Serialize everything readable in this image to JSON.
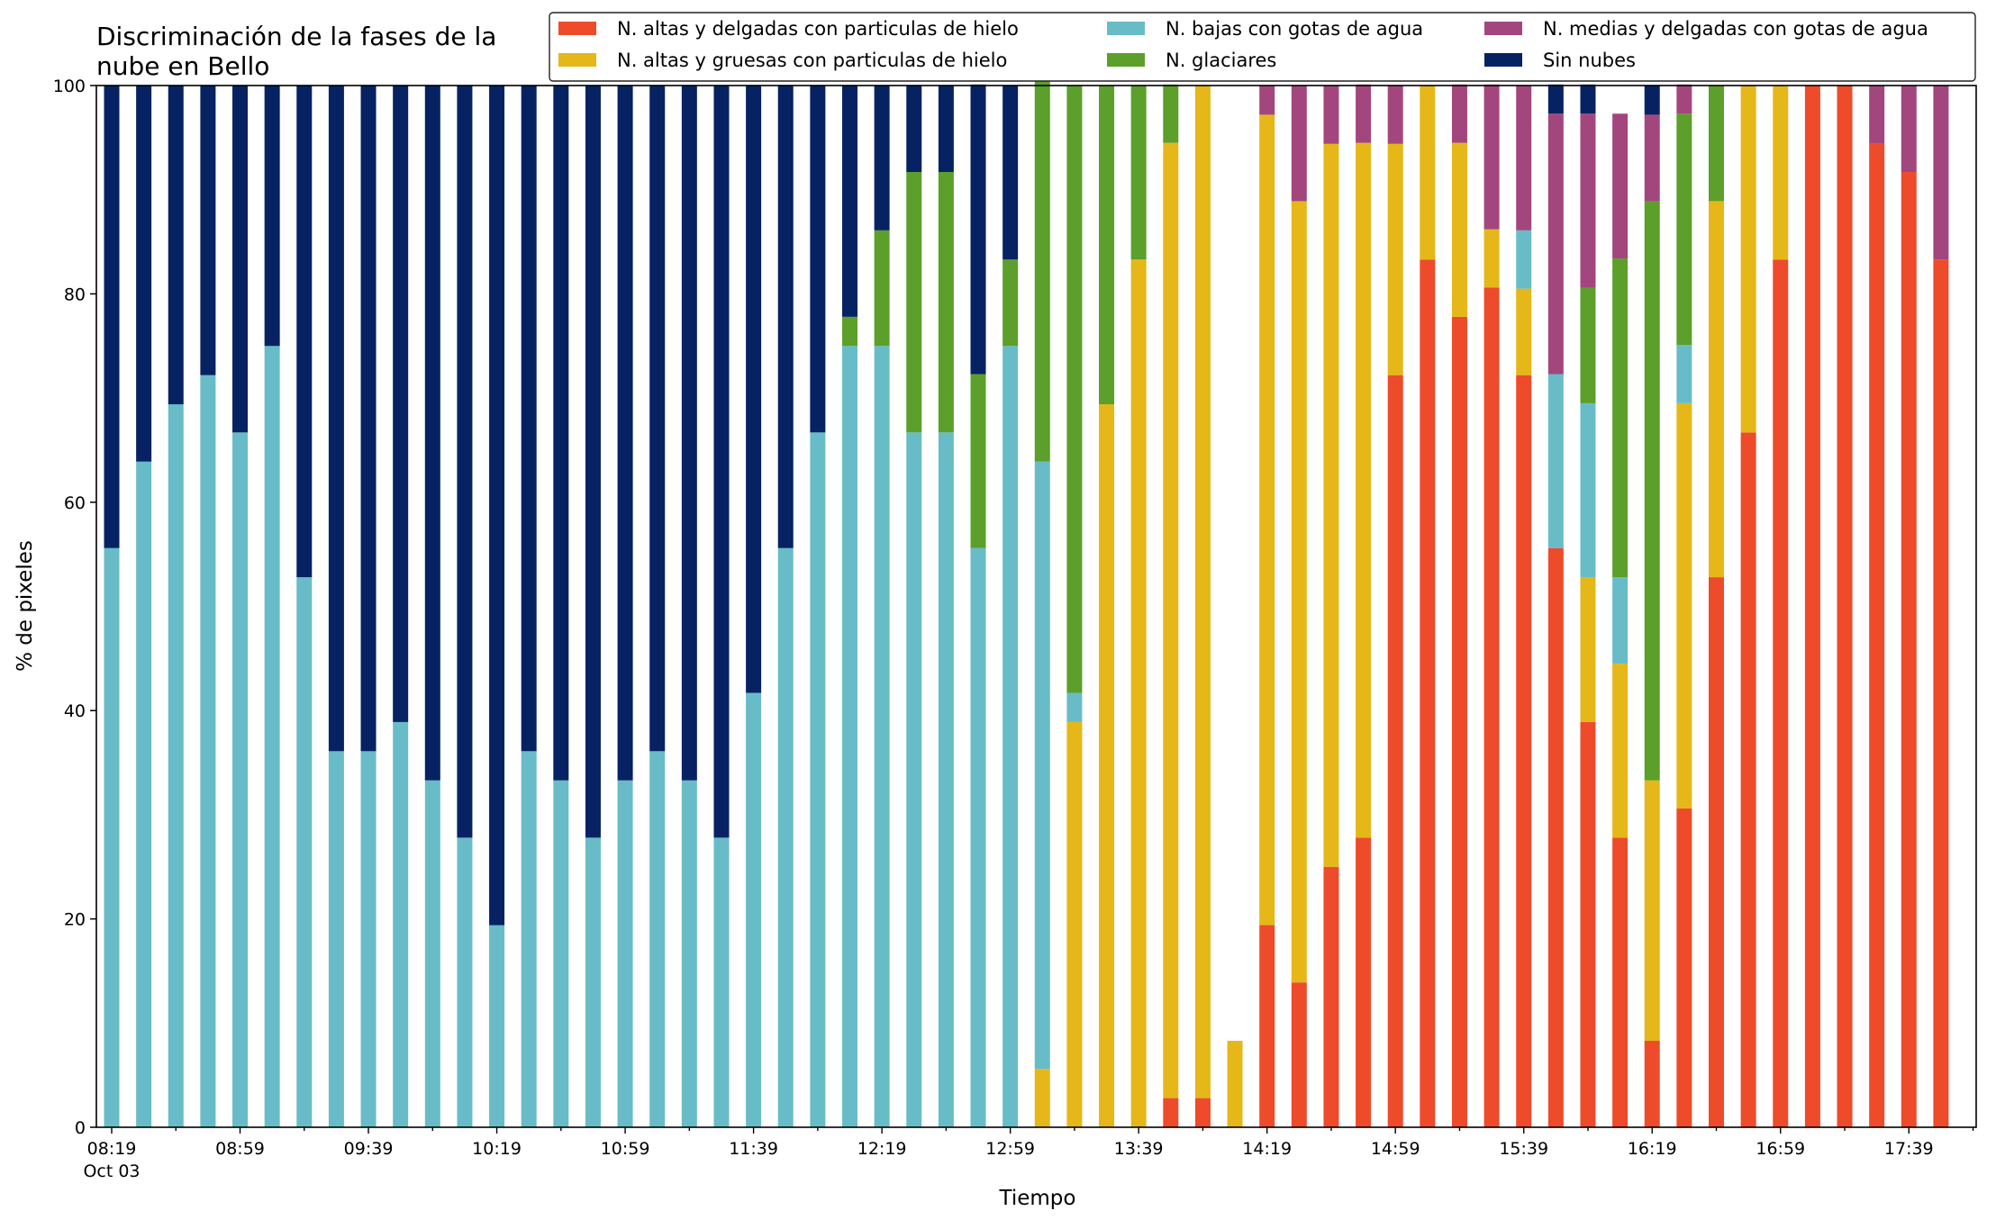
{
  "chart_data": {
    "type": "bar",
    "stacked": true,
    "title": "Discriminación de la fases de la nube en Bello",
    "title_lines": [
      "Discriminación de la fases de la",
      "nube en Bello"
    ],
    "xlabel": "Tiempo",
    "ylabel": "% de pixeles",
    "ylim": [
      0,
      100
    ],
    "yticks": [
      0,
      20,
      40,
      60,
      80,
      100
    ],
    "grid": false,
    "legend_position": "top-right",
    "x_tick_labels": [
      {
        "index": 0,
        "label": "08:19",
        "sublabel": "Oct 03"
      },
      {
        "index": 4,
        "label": "08:59"
      },
      {
        "index": 8,
        "label": "09:39"
      },
      {
        "index": 12,
        "label": "10:19"
      },
      {
        "index": 16,
        "label": "10:59"
      },
      {
        "index": 20,
        "label": "11:39"
      },
      {
        "index": 24,
        "label": "12:19"
      },
      {
        "index": 28,
        "label": "12:59"
      },
      {
        "index": 32,
        "label": "13:39"
      },
      {
        "index": 36,
        "label": "14:19"
      },
      {
        "index": 40,
        "label": "14:59"
      },
      {
        "index": 44,
        "label": "15:39"
      },
      {
        "index": 48,
        "label": "16:19"
      },
      {
        "index": 52,
        "label": "16:59"
      },
      {
        "index": 56,
        "label": "17:39"
      }
    ],
    "n_slots": 59,
    "series": [
      {
        "name": "N. altas y delgadas con particulas de hielo",
        "color": "#ee4b2b",
        "values": [
          0,
          0,
          0,
          0,
          0,
          0,
          0,
          0,
          0,
          0,
          0,
          0,
          0,
          0,
          0,
          0,
          0,
          0,
          0,
          0,
          0,
          0,
          0,
          0,
          0,
          0,
          0,
          0,
          0,
          0,
          0,
          0,
          0,
          2.8,
          2.8,
          0,
          19.4,
          13.9,
          25,
          27.8,
          72.2,
          83.3,
          77.8,
          80.6,
          72.2,
          55.6,
          38.9,
          27.8,
          8.3,
          30.6,
          52.8,
          66.7,
          83.3,
          100,
          100,
          94.4,
          91.7,
          83.3,
          0
        ]
      },
      {
        "name": "N. altas y gruesas con particulas de hielo",
        "color": "#e5b718",
        "values": [
          0,
          0,
          0,
          0,
          0,
          0,
          0,
          0,
          0,
          0,
          0,
          0,
          0,
          0,
          0,
          0,
          0,
          0,
          0,
          0,
          0,
          0,
          0,
          0,
          0,
          0,
          0,
          0,
          0,
          5.6,
          38.9,
          69.4,
          83.3,
          91.7,
          97.2,
          8.3,
          77.8,
          75,
          69.4,
          66.7,
          22.2,
          16.7,
          16.7,
          5.6,
          8.3,
          0,
          13.9,
          16.7,
          25,
          38.9,
          36.1,
          33.3,
          16.7,
          0,
          0,
          0,
          0,
          0,
          0
        ]
      },
      {
        "name": "N. bajas con gotas de agua",
        "color": "#68bcc8",
        "values": [
          55.6,
          63.9,
          69.4,
          72.2,
          66.7,
          75,
          52.8,
          36.1,
          36.1,
          38.9,
          33.3,
          27.8,
          19.4,
          36.1,
          33.3,
          27.8,
          33.3,
          36.1,
          33.3,
          27.8,
          41.7,
          55.6,
          66.7,
          75,
          75,
          66.7,
          66.7,
          55.6,
          75,
          58.3,
          2.8,
          0,
          0,
          0,
          0,
          0,
          0,
          0,
          0,
          0,
          0,
          0,
          0,
          0,
          5.6,
          16.7,
          16.7,
          8.3,
          0,
          5.6,
          0,
          0,
          0,
          0,
          0,
          0,
          0,
          0,
          0
        ]
      },
      {
        "name": "N. glaciares",
        "color": "#5c9f2a",
        "values": [
          0,
          0,
          0,
          0,
          0,
          0,
          0,
          0,
          0,
          0,
          0,
          0,
          0,
          0,
          0,
          0,
          0,
          0,
          0,
          0,
          0,
          0,
          0,
          2.8,
          11.1,
          25,
          25,
          16.7,
          8.3,
          38.9,
          58.3,
          30.6,
          16.7,
          5.6,
          0,
          0,
          0,
          0,
          0,
          0,
          0,
          0,
          0,
          0,
          0,
          0,
          11.1,
          30.6,
          55.6,
          22.2,
          11.1,
          0,
          0,
          0,
          0,
          0,
          0,
          0,
          0
        ]
      },
      {
        "name": "N. medias y delgadas con gotas de agua",
        "color": "#a4467e",
        "values": [
          0,
          0,
          0,
          0,
          0,
          0,
          0,
          0,
          0,
          0,
          0,
          0,
          0,
          0,
          0,
          0,
          0,
          0,
          0,
          0,
          0,
          0,
          0,
          0,
          0,
          0,
          0,
          0,
          0,
          0,
          0,
          0,
          0,
          0,
          0,
          0,
          2.8,
          11.1,
          5.6,
          5.6,
          5.6,
          0,
          5.6,
          13.9,
          13.9,
          25,
          16.7,
          13.9,
          8.3,
          2.8,
          0,
          0,
          0,
          0,
          0,
          5.6,
          8.3,
          16.7,
          0
        ]
      },
      {
        "name": "Sin nubes",
        "color": "#062263",
        "values": [
          44.4,
          36.1,
          30.6,
          27.8,
          33.3,
          25,
          47.2,
          63.9,
          63.9,
          61.1,
          66.7,
          72.2,
          80.6,
          63.9,
          66.7,
          72.2,
          66.7,
          63.9,
          66.7,
          72.2,
          58.3,
          44.4,
          33.3,
          22.2,
          13.9,
          8.3,
          8.3,
          27.8,
          16.7,
          2.8,
          0,
          0,
          0,
          0,
          0,
          0,
          0,
          0,
          0,
          0,
          0,
          0,
          0,
          0,
          0,
          2.8,
          2.8,
          0,
          2.8,
          0,
          0,
          0,
          0,
          0,
          0,
          0,
          0,
          0,
          0
        ]
      }
    ],
    "legend_order": [
      0,
      1,
      2,
      3,
      4,
      5
    ]
  }
}
